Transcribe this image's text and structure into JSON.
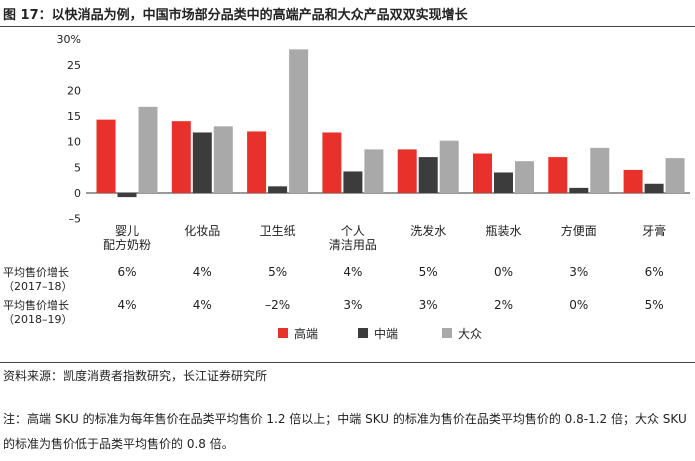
{
  "figure": {
    "title": "图 17：以快消品为例，中国市场部分品类中的高端产品和大众产品双双实现增长",
    "source": "资料来源：凯度消费者指数研究，长江证券研究所",
    "note": "注：高端 SKU 的标准为每年售价在品类平均售价 1.2 倍以上；中端 SKU 的标准为售价在品类平均售价的 0.8-1.2 倍；大众 SKU 的标准为售价低于品类平均售价的 0.8 倍。"
  },
  "chart_data": {
    "type": "bar",
    "title": "",
    "xlabel": "",
    "ylabel": "",
    "ylim": [
      -5,
      30
    ],
    "yticks": [
      -5,
      0,
      5,
      10,
      15,
      20,
      25,
      30
    ],
    "ytick_labels": [
      "–5",
      "0",
      "5",
      "10",
      "15",
      "20",
      "25",
      "30%"
    ],
    "categories": [
      "婴儿\n配方奶粉",
      "化妆品",
      "卫生纸",
      "个人\n清洁用品",
      "洗发水",
      "瓶装水",
      "方便面",
      "牙膏"
    ],
    "series": [
      {
        "name": "高端",
        "color": "#e8312a",
        "values": [
          14.3,
          14.0,
          12.0,
          11.8,
          8.5,
          7.7,
          7.0,
          4.5
        ]
      },
      {
        "name": "中端",
        "color": "#3c3c3c",
        "values": [
          -0.8,
          11.8,
          1.3,
          4.2,
          7.0,
          4.0,
          1.0,
          1.8
        ]
      },
      {
        "name": "大众",
        "color": "#a9a9a9",
        "values": [
          16.8,
          13.0,
          28.0,
          8.5,
          10.2,
          6.2,
          8.8,
          6.8
        ]
      }
    ],
    "legend_position": "bottom-right",
    "grid": false,
    "table_rows": [
      {
        "label": [
          "平均售价增长",
          "（2017–18）"
        ],
        "values": [
          "6%",
          "4%",
          "5%",
          "4%",
          "5%",
          "0%",
          "3%",
          "6%"
        ]
      },
      {
        "label": [
          "平均售价增长",
          "（2018–19）"
        ],
        "values": [
          "4%",
          "4%",
          "–2%",
          "3%",
          "3%",
          "2%",
          "0%",
          "5%"
        ]
      }
    ]
  }
}
